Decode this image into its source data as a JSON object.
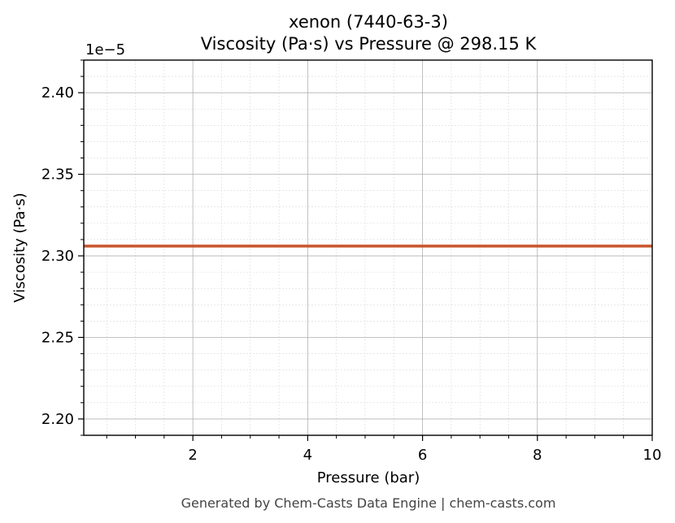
{
  "chart_data": {
    "type": "line",
    "title_line1": "xenon (7440-63-3)",
    "title_line2": "Viscosity (Pa·s) vs Pressure @ 298.15 K",
    "xlabel": "Pressure (bar)",
    "ylabel": "Viscosity (Pa·s)",
    "y_offset_label": "1e−5",
    "xlim": [
      0.1,
      10
    ],
    "ylim": [
      2.19,
      2.42
    ],
    "x_scale": "linear",
    "y_scale_note": "values shown ×1e−5",
    "x_ticks": [
      2,
      4,
      6,
      8,
      10
    ],
    "y_ticks": [
      2.2,
      2.25,
      2.3,
      2.35,
      2.4
    ],
    "y_tick_labels": [
      "2.20",
      "2.25",
      "2.30",
      "2.35",
      "2.40"
    ],
    "x_tick_labels": [
      "2",
      "4",
      "6",
      "8",
      "10"
    ],
    "grid": true,
    "minor_grid": true,
    "series": [
      {
        "color": "#c8552b",
        "x": [
          0.1,
          10
        ],
        "y": [
          2.306,
          2.306
        ]
      }
    ]
  },
  "footer": "Generated by Chem-Casts Data Engine | chem-casts.com"
}
